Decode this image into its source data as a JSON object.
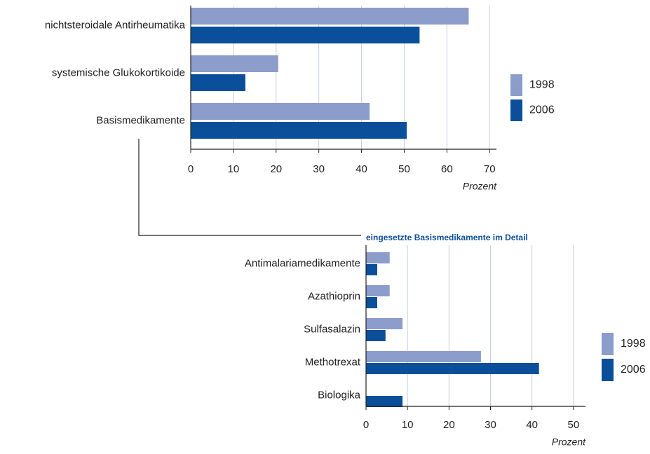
{
  "chart_data": [
    {
      "type": "barh",
      "xlabel": "Prozent",
      "categories": [
        "nichtsteroidale Antirheumatika",
        "systemische Glukokortikoide",
        "Basismedikamente"
      ],
      "series": [
        {
          "name": "1998",
          "color": "#8c9ccb",
          "values": [
            65.1,
            20.5,
            41.9
          ]
        },
        {
          "name": "2006",
          "color": "#0b4f9b",
          "values": [
            53.6,
            12.8,
            50.6
          ]
        }
      ],
      "xlim": [
        0,
        71.6
      ],
      "xticks": [
        0,
        10,
        20,
        30,
        40,
        50,
        60,
        70
      ],
      "grid": true
    },
    {
      "type": "barh",
      "title": "eingesetzte Basismedikamente im Detail",
      "xlabel": "Prozent",
      "categories": [
        "Antimalariamedikamente",
        "Azathioprin",
        "Sulfasalazin",
        "Methotrexat",
        "Biologika"
      ],
      "series": [
        {
          "name": "1998",
          "color": "#8c9ccb",
          "values": [
            5.7,
            5.7,
            8.8,
            27.7,
            null
          ]
        },
        {
          "name": "2006",
          "color": "#0b4f9b",
          "values": [
            2.7,
            2.7,
            4.7,
            41.7,
            8.8
          ]
        }
      ],
      "xlim": [
        0,
        52.9
      ],
      "xticks": [
        0,
        10,
        20,
        30,
        40,
        50
      ],
      "grid": true
    }
  ]
}
